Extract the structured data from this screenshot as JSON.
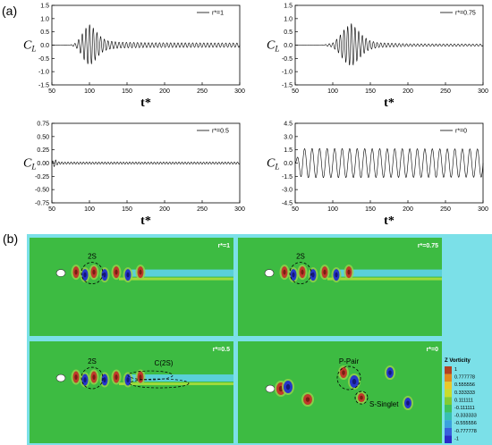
{
  "figure": {
    "panel_a_label": "(a)",
    "panel_b_label": "(b)"
  },
  "chart_data": [
    {
      "type": "line",
      "legend": "r*=1",
      "xlabel": "t*",
      "ylabel": "C_L",
      "xlim": [
        50,
        300
      ],
      "ylim": [
        -1.5,
        1.5
      ],
      "xticks": [
        "50",
        "100",
        "150",
        "200",
        "250",
        "300"
      ],
      "yticks": [
        "-1.5",
        "-1.0",
        "-0.5",
        "0.0",
        "0.5",
        "1.0",
        "1.5"
      ],
      "series": [
        {
          "name": "r*=1",
          "period": 4.9,
          "envelope": [
            [
              50,
              0
            ],
            [
              75,
              0.01
            ],
            [
              82,
              0.08
            ],
            [
              88,
              0.3
            ],
            [
              94,
              0.6
            ],
            [
              100,
              0.78
            ],
            [
              106,
              0.62
            ],
            [
              112,
              0.4
            ],
            [
              118,
              0.25
            ],
            [
              125,
              0.16
            ],
            [
              140,
              0.11
            ],
            [
              180,
              0.09
            ],
            [
              300,
              0.08
            ]
          ]
        }
      ]
    },
    {
      "type": "line",
      "legend": "r*=0.75",
      "xlabel": "t*",
      "ylabel": "C_L",
      "xlim": [
        50,
        300
      ],
      "ylim": [
        -1.5,
        1.5
      ],
      "xticks": [
        "50",
        "100",
        "150",
        "200",
        "250",
        "300"
      ],
      "yticks": [
        "-1.5",
        "-1.0",
        "-0.5",
        "0.0",
        "0.5",
        "1.0",
        "1.5"
      ],
      "series": [
        {
          "name": "r*=0.75",
          "period": 4.9,
          "envelope": [
            [
              50,
              0
            ],
            [
              88,
              0.01
            ],
            [
              100,
              0.08
            ],
            [
              108,
              0.3
            ],
            [
              116,
              0.62
            ],
            [
              125,
              0.82
            ],
            [
              132,
              0.6
            ],
            [
              140,
              0.35
            ],
            [
              148,
              0.18
            ],
            [
              160,
              0.09
            ],
            [
              200,
              0.05
            ],
            [
              300,
              0.04
            ]
          ]
        }
      ]
    },
    {
      "type": "line",
      "legend": "r*=0.5",
      "xlabel": "t*",
      "ylabel": "C_L",
      "xlim": [
        50,
        300
      ],
      "ylim": [
        -0.75,
        0.75
      ],
      "xticks": [
        "50",
        "100",
        "150",
        "200",
        "250",
        "300"
      ],
      "yticks": [
        "-0.75",
        "-0.50",
        "-0.25",
        "0.00",
        "0.25",
        "0.50",
        "0.75"
      ],
      "series": [
        {
          "name": "r*=0.5",
          "period": 4.1,
          "envelope": [
            [
              50,
              0
            ],
            [
              52,
              0.07
            ],
            [
              55,
              0.06
            ],
            [
              58,
              0.025
            ],
            [
              65,
              0.02
            ],
            [
              300,
              0.02
            ]
          ]
        }
      ]
    },
    {
      "type": "line",
      "legend": "r*=0",
      "xlabel": "t*",
      "ylabel": "C_L",
      "xlim": [
        50,
        300
      ],
      "ylim": [
        -4.5,
        4.5
      ],
      "xticks": [
        "50",
        "100",
        "150",
        "200",
        "250",
        "300"
      ],
      "yticks": [
        "-4.5",
        "-3.0",
        "-1.5",
        "0.0",
        "1.5",
        "3.0",
        "4.5"
      ],
      "series": [
        {
          "name": "r*=0",
          "period": 10.0,
          "envelope": [
            [
              50,
              0
            ],
            [
              53,
              0.7
            ],
            [
              58,
              1.6
            ],
            [
              65,
              1.65
            ],
            [
              300,
              1.6
            ]
          ]
        }
      ]
    }
  ],
  "contours": {
    "panels": [
      {
        "label": "r*=1",
        "annotations": [
          "2S"
        ]
      },
      {
        "label": "r*=0.75",
        "annotations": [
          "2S"
        ]
      },
      {
        "label": "r*=0.5",
        "annotations": [
          "2S",
          "C(2S)"
        ]
      },
      {
        "label": "r*=0",
        "annotations": [
          "P-Pair",
          "S-Singlet"
        ]
      }
    ],
    "colorbar": {
      "title": "Z Vorticity",
      "ticks": [
        "1",
        "0.777778",
        "0.555556",
        "0.333333",
        "0.111111",
        "-0.111111",
        "-0.333333",
        "-0.555556",
        "-0.777778",
        "-1"
      ],
      "colors": [
        "#b4401f",
        "#e08a1c",
        "#eac82a",
        "#c8dc2c",
        "#82cb34",
        "#3fc25a",
        "#37c0b0",
        "#3aa2dd",
        "#3860dc",
        "#2a2ac8"
      ]
    },
    "background_color": "#3dbb42",
    "wake_color": "#5fd3f2"
  }
}
